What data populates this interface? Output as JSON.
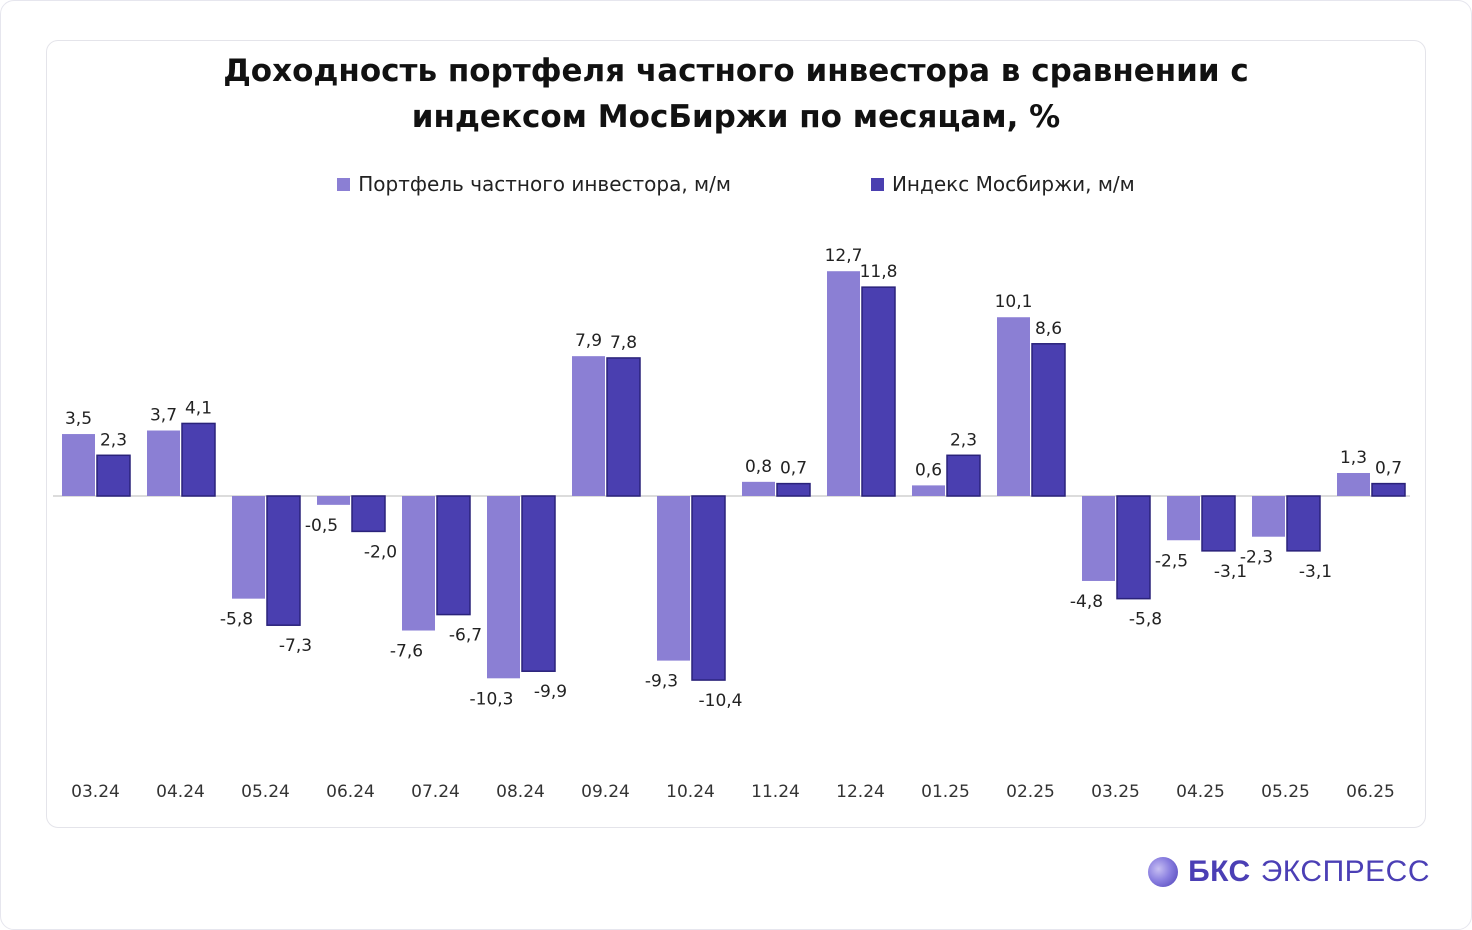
{
  "title": {
    "line1": "Доходность портфеля частного инвестора в сравнении с",
    "line2": "индексом МосБиржи по месяцам, %"
  },
  "brand": {
    "part1": "БКС",
    "part2": "ЭКСПРЕСС"
  },
  "colors": {
    "portfolio": "#8b7fd4",
    "index": "#4a3fb0",
    "index_stroke": "#2a227a"
  },
  "chart_data": {
    "type": "bar",
    "title": "Доходность портфеля частного инвестора в сравнении с индексом МосБиржи по месяцам, %",
    "xlabel": "",
    "ylabel": "",
    "legend": "top-center",
    "grid": false,
    "ylim": [
      -14,
      14
    ],
    "categories": [
      "03.24",
      "04.24",
      "05.24",
      "06.24",
      "07.24",
      "08.24",
      "09.24",
      "10.24",
      "11.24",
      "12.24",
      "01.25",
      "02.25",
      "03.25",
      "04.25",
      "05.25",
      "06.25"
    ],
    "series": [
      {
        "name": "Портфель частного инвестора, м/м",
        "values": [
          3.5,
          3.7,
          -5.8,
          -0.5,
          -7.6,
          -10.3,
          7.9,
          -9.3,
          0.8,
          12.7,
          0.6,
          10.1,
          -4.8,
          -2.5,
          -2.3,
          1.3
        ],
        "labels": [
          "3,5",
          "3,7",
          "-5,8",
          "-0,5",
          "-7,6",
          "-10,3",
          "7,9",
          "-9,3",
          "0,8",
          "12,7",
          "0,6",
          "10,1",
          "-4,8",
          "-2,5",
          "-2,3",
          "1,3"
        ]
      },
      {
        "name": "Индекс Мосбиржи, м/м",
        "values": [
          2.3,
          4.1,
          -7.3,
          -2.0,
          -6.7,
          -9.9,
          7.8,
          -10.4,
          0.7,
          11.8,
          2.3,
          8.6,
          -5.8,
          -3.1,
          -3.1,
          0.7
        ],
        "labels": [
          "2,3",
          "4,1",
          "-7,3",
          "-2,0",
          "-6,7",
          "-9,9",
          "7,8",
          "-10,4",
          "0,7",
          "11,8",
          "2,3",
          "8,6",
          "-5,8",
          "-3,1",
          "-3,1",
          "0,7"
        ]
      }
    ]
  }
}
